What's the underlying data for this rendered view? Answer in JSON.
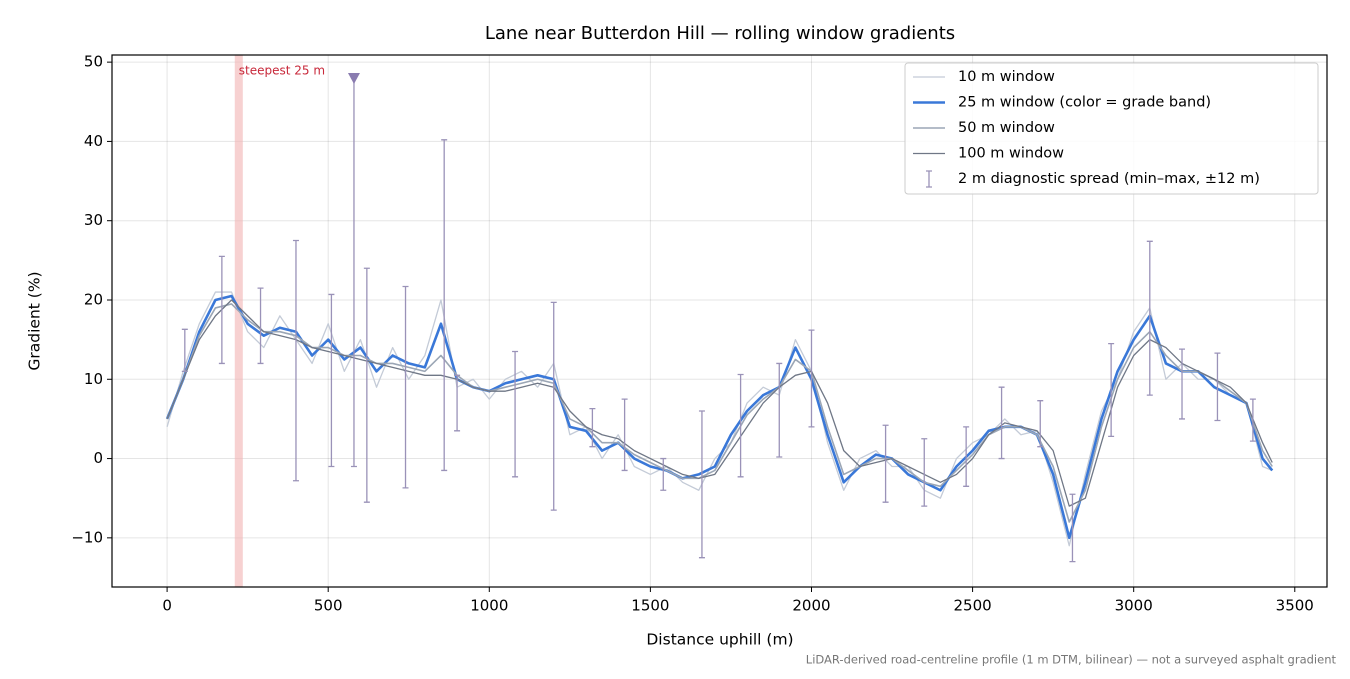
{
  "chart_data": {
    "type": "line",
    "title": "Lane near Butterdon Hill — rolling window gradients",
    "x_label": "Distance uphill (m)",
    "y_label": "Gradient (%)",
    "footnote": "LiDAR-derived road-centreline profile (1 m DTM, bilinear) — not a surveyed asphalt gradient",
    "xlim": [
      -171,
      3600
    ],
    "ylim": [
      -16.2,
      50.9
    ],
    "xticks": [
      0,
      500,
      1000,
      1500,
      2000,
      2500,
      3000,
      3500
    ],
    "yticks": [
      {
        "value": -10,
        "label": "−10"
      },
      0,
      10,
      20,
      30,
      40,
      50
    ],
    "grid": true,
    "legend": "upper right",
    "x": [
      0,
      50,
      100,
      150,
      200,
      250,
      300,
      350,
      400,
      450,
      500,
      550,
      600,
      650,
      700,
      750,
      800,
      850,
      900,
      950,
      1000,
      1050,
      1100,
      1150,
      1200,
      1250,
      1300,
      1350,
      1400,
      1450,
      1500,
      1550,
      1600,
      1650,
      1700,
      1750,
      1800,
      1850,
      1900,
      1950,
      2000,
      2050,
      2100,
      2150,
      2200,
      2250,
      2300,
      2350,
      2400,
      2450,
      2500,
      2550,
      2600,
      2650,
      2700,
      2750,
      2800,
      2850,
      2900,
      2950,
      3000,
      3050,
      3100,
      3150,
      3200,
      3250,
      3300,
      3350,
      3400,
      3430
    ],
    "series": [
      {
        "name": "10 m window",
        "color": "#c4cbd7",
        "width": 1.3,
        "values": [
          4,
          11,
          17,
          21,
          21,
          16,
          14,
          18,
          15,
          12,
          17,
          11,
          15,
          9,
          14,
          10,
          13,
          20,
          9,
          10,
          7.5,
          10,
          11,
          9,
          12,
          3,
          4,
          0,
          3,
          -1,
          -2,
          -1,
          -3,
          -4,
          0,
          2,
          7,
          9,
          8,
          15,
          11,
          2,
          -4,
          0,
          1,
          -1,
          -1,
          -4,
          -5,
          0,
          2,
          3,
          5,
          3,
          3.5,
          -3,
          -11,
          -2,
          6,
          10,
          16,
          19,
          10,
          12,
          10,
          10,
          8,
          7,
          -1,
          -1.5
        ]
      },
      {
        "name": "25 m window (color = grade band)",
        "color": "#3a78d8",
        "width": 2.6,
        "values": [
          5,
          10,
          16,
          20,
          20.5,
          17,
          15.5,
          16.5,
          16,
          13,
          15,
          12.5,
          14,
          11,
          13,
          12,
          11.5,
          17,
          10,
          9,
          8.5,
          9.5,
          10,
          10.5,
          10,
          4,
          3.5,
          1,
          2,
          0,
          -1,
          -1.5,
          -2.5,
          -2,
          -1,
          3,
          6,
          8,
          9,
          14,
          10,
          3,
          -3,
          -1,
          0.5,
          0,
          -2,
          -3,
          -4,
          -1,
          1,
          3.5,
          4,
          4,
          3,
          -2,
          -10,
          -3,
          5,
          11,
          15,
          18,
          12,
          11,
          11,
          9,
          8,
          7,
          0,
          -1.5
        ]
      },
      {
        "name": "50 m window",
        "color": "#9ba6b5",
        "width": 1.6,
        "values": [
          5,
          10,
          15.5,
          19,
          19.5,
          17.5,
          16,
          16,
          15.5,
          14,
          14,
          13,
          13,
          12,
          12,
          11.5,
          11,
          13,
          10.5,
          9,
          8.5,
          9,
          9.5,
          10,
          9.5,
          5,
          4,
          2,
          2,
          0.5,
          -0.5,
          -1.5,
          -2.5,
          -2.5,
          -1.5,
          2,
          5.5,
          7.5,
          9,
          12.5,
          11,
          4,
          -2,
          -1,
          0,
          0,
          -1.5,
          -3,
          -3.5,
          -1.5,
          0.5,
          3,
          4,
          4,
          3,
          -1,
          -8,
          -4,
          4,
          10,
          14,
          16,
          13,
          11,
          11,
          10,
          8.5,
          7,
          1,
          -1
        ]
      },
      {
        "name": "100 m window",
        "color": "#6f7786",
        "width": 1.3,
        "values": [
          5,
          10,
          15,
          18,
          20,
          18,
          16,
          15.5,
          15,
          14,
          13.5,
          13,
          12.5,
          12,
          11.5,
          11,
          10.5,
          10.5,
          10,
          9,
          8.5,
          8.5,
          9,
          9.5,
          9,
          6,
          4,
          3,
          2.5,
          1,
          0,
          -1,
          -2,
          -2.5,
          -2,
          1,
          4,
          7,
          9,
          10.5,
          11,
          7,
          1,
          -1,
          -0.5,
          0,
          -1,
          -2,
          -3,
          -2,
          0,
          3,
          4.5,
          4,
          3.5,
          1,
          -6,
          -5,
          2,
          9,
          13,
          15,
          14,
          12,
          11,
          10,
          9,
          7,
          2,
          -0.5
        ]
      }
    ],
    "errorbars": {
      "name": "2 m diagnostic spread (min–max, ±12 m)",
      "color": "#9a92b8",
      "x": [
        55,
        170,
        290,
        400,
        510,
        580,
        620,
        740,
        860,
        900,
        1080,
        1200,
        1320,
        1420,
        1540,
        1660,
        1780,
        1900,
        2000,
        2230,
        2350,
        2480,
        2590,
        2710,
        2810,
        2930,
        3050,
        3150,
        3260,
        3370
      ],
      "low": [
        11,
        12,
        12,
        -2.8,
        -1,
        -1,
        -5.5,
        -3.7,
        -1.5,
        3.5,
        -2.3,
        -6.5,
        1.5,
        -1.5,
        -4,
        -12.5,
        -2.3,
        0.2,
        4,
        -5.5,
        -6,
        -3.5,
        0,
        1.5,
        -13,
        2.8,
        8,
        5,
        4.8,
        2.2
      ],
      "high": [
        16.3,
        25.5,
        21.5,
        27.5,
        20.7,
        48,
        24,
        21.7,
        40.2,
        10.5,
        13.5,
        19.7,
        6.3,
        7.5,
        0,
        6,
        10.6,
        12,
        16.2,
        4.2,
        2.5,
        4,
        9,
        7.3,
        -4.5,
        14.5,
        27.4,
        13.8,
        13.3,
        7.5
      ]
    },
    "marker": {
      "x": 580,
      "y": 48,
      "color": "#8a7cb0"
    },
    "highlight": {
      "label": "steepest 25 m",
      "x": [
        210,
        235
      ],
      "color": "#f2b3b3",
      "label_color": "#c8283a"
    }
  }
}
